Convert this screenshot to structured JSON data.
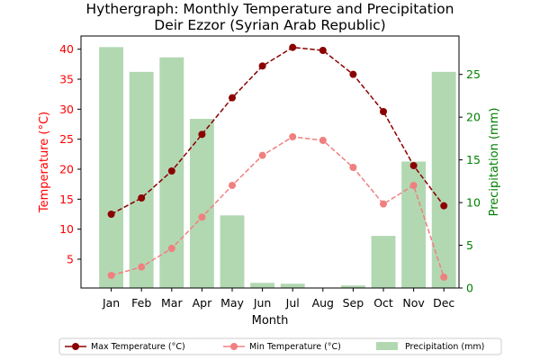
{
  "chart_data": {
    "type": "bar+line",
    "title": "Hythergraph: Monthly Temperature and Precipitation",
    "subtitle": "Deir Ezzor (Syrian Arab Republic)",
    "xlabel": "Month",
    "ylabel_left": "Temperature (°C)",
    "ylabel_right": "Precipitation (mm)",
    "categories": [
      "Jan",
      "Feb",
      "Mar",
      "Apr",
      "May",
      "Jun",
      "Jul",
      "Aug",
      "Sep",
      "Oct",
      "Nov",
      "Dec"
    ],
    "ylim_left": [
      0.2,
      42.2
    ],
    "yticks_left": [
      5,
      10,
      15,
      20,
      25,
      30,
      35,
      40
    ],
    "ylim_right": [
      0,
      29.5
    ],
    "yticks_right": [
      0,
      5,
      10,
      15,
      20,
      25
    ],
    "grid": false,
    "legend_position": "bottom (below plot)",
    "series": [
      {
        "name": "Max Temperature (°C)",
        "axis": "left",
        "kind": "line",
        "style": "dashed with circle markers",
        "color": "#8b0000",
        "values": [
          12.5,
          15.2,
          19.7,
          25.8,
          31.9,
          37.2,
          40.3,
          39.8,
          35.8,
          29.6,
          20.6,
          13.9
        ]
      },
      {
        "name": "Min Temperature (°C)",
        "axis": "left",
        "kind": "line",
        "style": "dashed with circle markers",
        "color": "#f08080",
        "values": [
          2.3,
          3.7,
          6.8,
          12.0,
          17.3,
          22.3,
          25.4,
          24.8,
          20.3,
          14.2,
          17.3,
          2.0
        ]
      },
      {
        "name": "Precipitation (mm)",
        "axis": "right",
        "kind": "bar",
        "color": "#b2d8b2",
        "values": [
          28.2,
          25.3,
          27.0,
          19.8,
          8.5,
          0.6,
          0.5,
          0.0,
          0.3,
          6.1,
          14.8,
          25.3
        ]
      }
    ]
  },
  "colors": {
    "left_axis": "#ff0000",
    "right_axis": "#008000",
    "text": "#000000"
  }
}
